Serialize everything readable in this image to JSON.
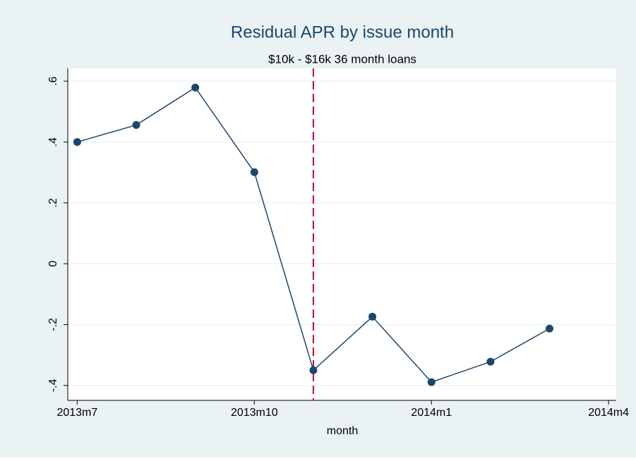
{
  "chart_data": {
    "type": "line",
    "title": "Residual APR by issue month",
    "subtitle": "$10k - $16k 36 month loans",
    "xlabel": "month",
    "x": [
      642,
      643,
      644,
      645,
      646,
      647,
      648,
      649,
      650
    ],
    "series": [
      {
        "name": "residual APR",
        "color": "#1a476f",
        "values": [
          0.4,
          0.456,
          0.579,
          0.301,
          -0.35,
          -0.174,
          -0.389,
          -0.322,
          -0.213
        ]
      }
    ],
    "xlim": [
      641.84,
      651.13
    ],
    "xticks": [
      {
        "value": 642,
        "label": "2013m7"
      },
      {
        "value": 645,
        "label": "2013m10"
      },
      {
        "value": 648,
        "label": "2014m1"
      },
      {
        "value": 651,
        "label": "2014m4"
      }
    ],
    "ylim": [
      -0.449,
      0.642
    ],
    "yticks": [
      {
        "value": -0.4,
        "label": "-.4"
      },
      {
        "value": -0.2,
        "label": "-.2"
      },
      0,
      {
        "value": 0.2,
        "label": ".2"
      },
      {
        "value": 0.4,
        "label": ".4"
      },
      {
        "value": 0.6,
        "label": ".6"
      }
    ],
    "xline": 646,
    "xline_color": "#c10534",
    "grid": true
  }
}
